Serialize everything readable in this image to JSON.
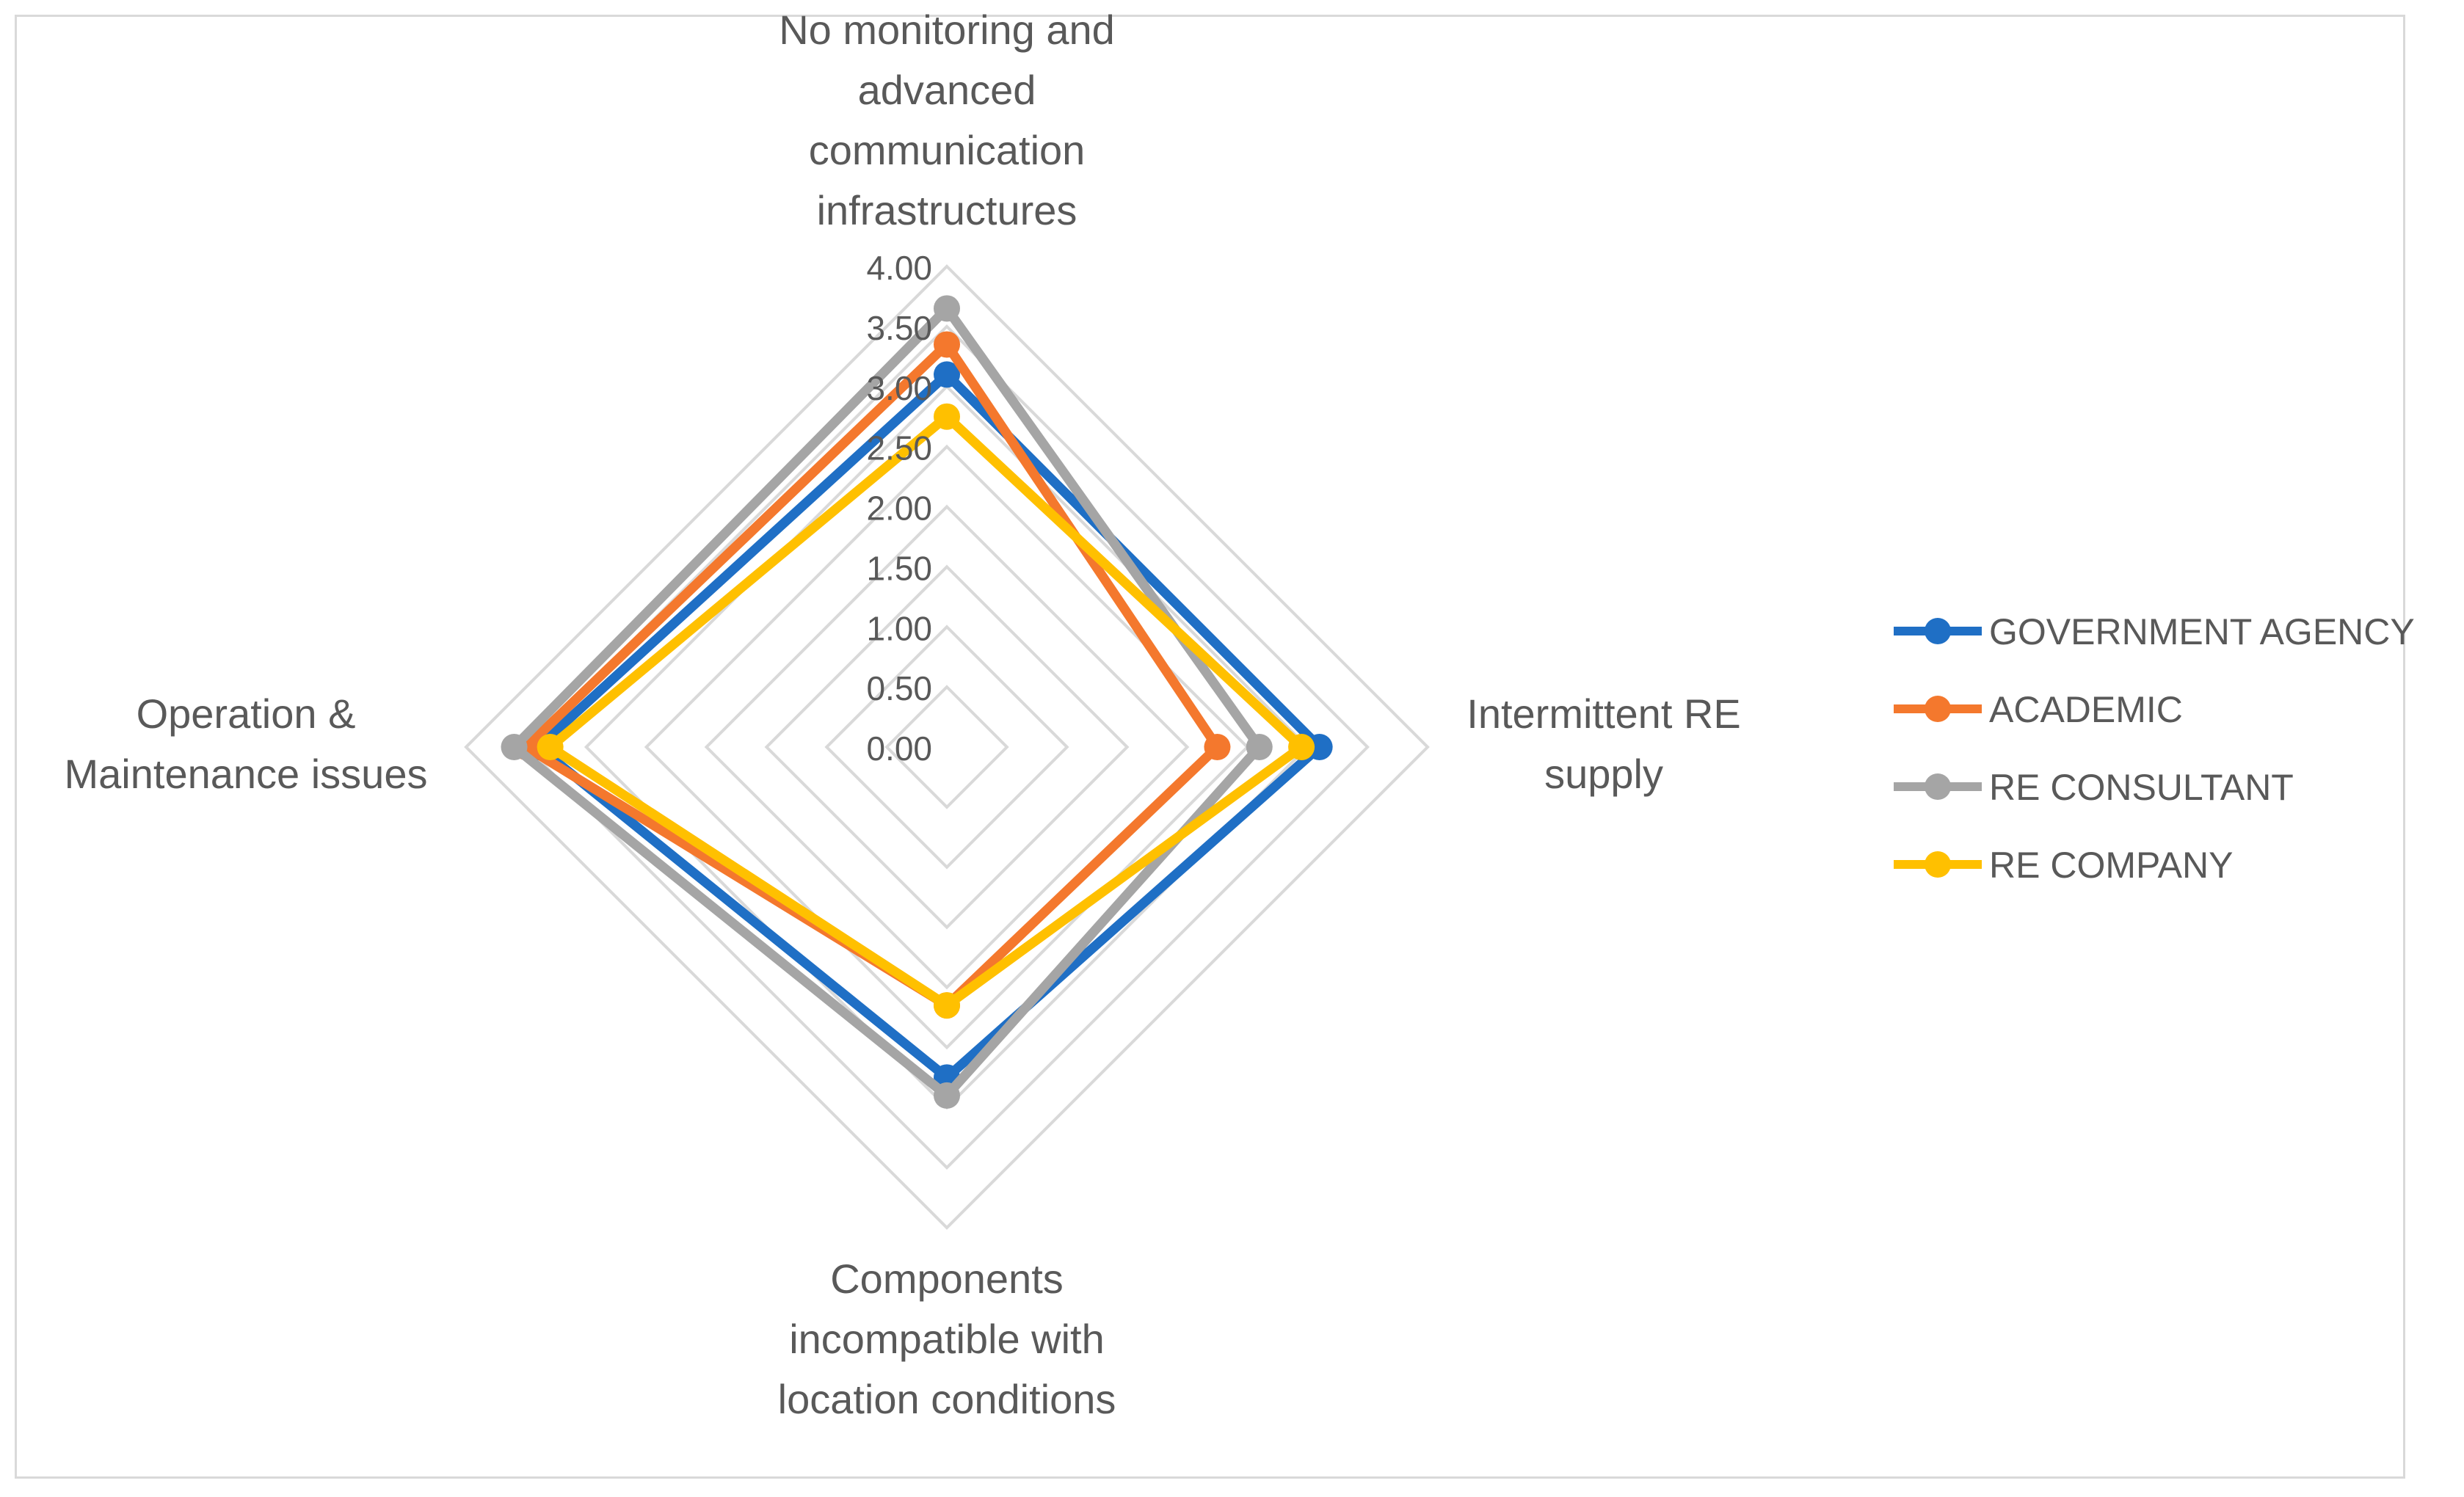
{
  "chart_data": {
    "type": "radar",
    "title": "",
    "axes": [
      "No monitoring and\nadvanced\ncommunication\ninfrastructures",
      "Intermittent RE\nsupply",
      "Components\nincompatible with\nlocation conditions",
      "Operation &\nMaintenance issues"
    ],
    "rlim": [
      0,
      4
    ],
    "ticks": [
      "0.00",
      "0.50",
      "1.00",
      "1.50",
      "2.00",
      "2.50",
      "3.00",
      "3.50",
      "4.00"
    ],
    "grid": true,
    "legend_position": "right",
    "series": [
      {
        "name": "GOVERNMENT AGENCY",
        "color": "#1f6fc5",
        "values": [
          3.1,
          3.1,
          2.75,
          3.4
        ]
      },
      {
        "name": "ACADEMIC",
        "color": "#f4782d",
        "values": [
          3.35,
          2.25,
          2.15,
          3.5
        ]
      },
      {
        "name": "RE CONSULTANT",
        "color": "#a5a5a5",
        "values": [
          3.65,
          2.6,
          2.9,
          3.6
        ]
      },
      {
        "name": "RE COMPANY",
        "color": "#ffc000",
        "values": [
          2.75,
          2.95,
          2.15,
          3.3
        ]
      }
    ]
  }
}
